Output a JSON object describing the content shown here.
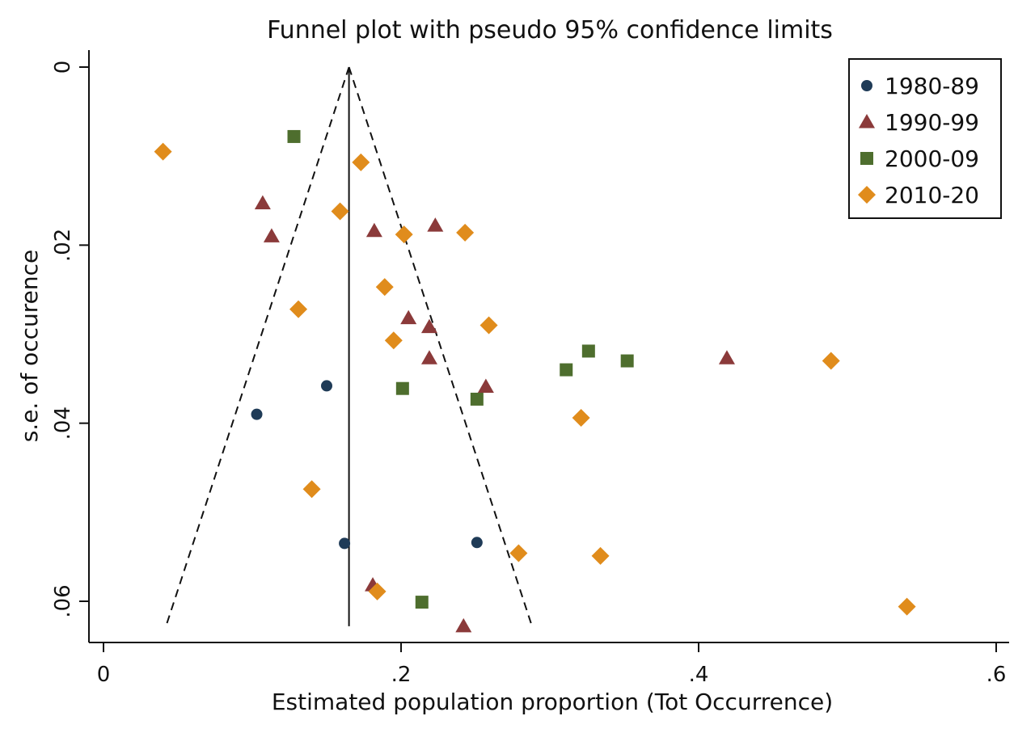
{
  "chart_data": {
    "type": "scatter",
    "title": "Funnel plot with pseudo 95% confidence limits",
    "xlabel": "Estimated population proportion (Tot Occurrence)",
    "ylabel": "s.e. of occurence",
    "xlim": [
      0,
      0.6
    ],
    "ylim": [
      0,
      0.063
    ],
    "y_inverted": true,
    "xticks": [
      0,
      0.2,
      0.4,
      0.6
    ],
    "xtick_labels": [
      "0",
      ".2",
      ".4",
      ".6"
    ],
    "yticks": [
      0,
      0.02,
      0.04,
      0.06
    ],
    "ytick_labels": [
      "0",
      ".02",
      ".04",
      ".06"
    ],
    "grid": false,
    "legend_position": "top-right",
    "pooled_estimate": 0.165,
    "funnel": {
      "apex": [
        0.165,
        0.0
      ],
      "left_base": [
        0.042,
        0.0628
      ],
      "right_base": [
        0.288,
        0.0628
      ]
    },
    "series": [
      {
        "name": "1980-89",
        "marker": "circle",
        "color": "#1f3b57",
        "points": [
          [
            0.15,
            0.0358
          ],
          [
            0.103,
            0.039
          ],
          [
            0.162,
            0.0535
          ],
          [
            0.251,
            0.0534
          ]
        ]
      },
      {
        "name": "1990-99",
        "marker": "triangle",
        "color": "#8b3a3a",
        "points": [
          [
            0.107,
            0.0153
          ],
          [
            0.113,
            0.019
          ],
          [
            0.182,
            0.0184
          ],
          [
            0.223,
            0.0178
          ],
          [
            0.205,
            0.0282
          ],
          [
            0.219,
            0.0292
          ],
          [
            0.219,
            0.0327
          ],
          [
            0.257,
            0.0359
          ],
          [
            0.419,
            0.0327
          ],
          [
            0.181,
            0.0582
          ],
          [
            0.242,
            0.0628
          ]
        ]
      },
      {
        "name": "2000-09",
        "marker": "square",
        "color": "#4e6e2e",
        "points": [
          [
            0.128,
            0.0078
          ],
          [
            0.201,
            0.0361
          ],
          [
            0.251,
            0.0373
          ],
          [
            0.311,
            0.034
          ],
          [
            0.326,
            0.0319
          ],
          [
            0.352,
            0.033
          ],
          [
            0.214,
            0.0601
          ]
        ]
      },
      {
        "name": "2010-20",
        "marker": "diamond",
        "color": "#e08c1c",
        "points": [
          [
            0.04,
            0.0095
          ],
          [
            0.173,
            0.0107
          ],
          [
            0.159,
            0.0162
          ],
          [
            0.202,
            0.0188
          ],
          [
            0.243,
            0.0186
          ],
          [
            0.189,
            0.0247
          ],
          [
            0.131,
            0.0272
          ],
          [
            0.195,
            0.0307
          ],
          [
            0.259,
            0.029
          ],
          [
            0.489,
            0.033
          ],
          [
            0.321,
            0.0394
          ],
          [
            0.14,
            0.0474
          ],
          [
            0.279,
            0.0546
          ],
          [
            0.334,
            0.0549
          ],
          [
            0.184,
            0.0589
          ],
          [
            0.54,
            0.0606
          ]
        ]
      }
    ]
  }
}
